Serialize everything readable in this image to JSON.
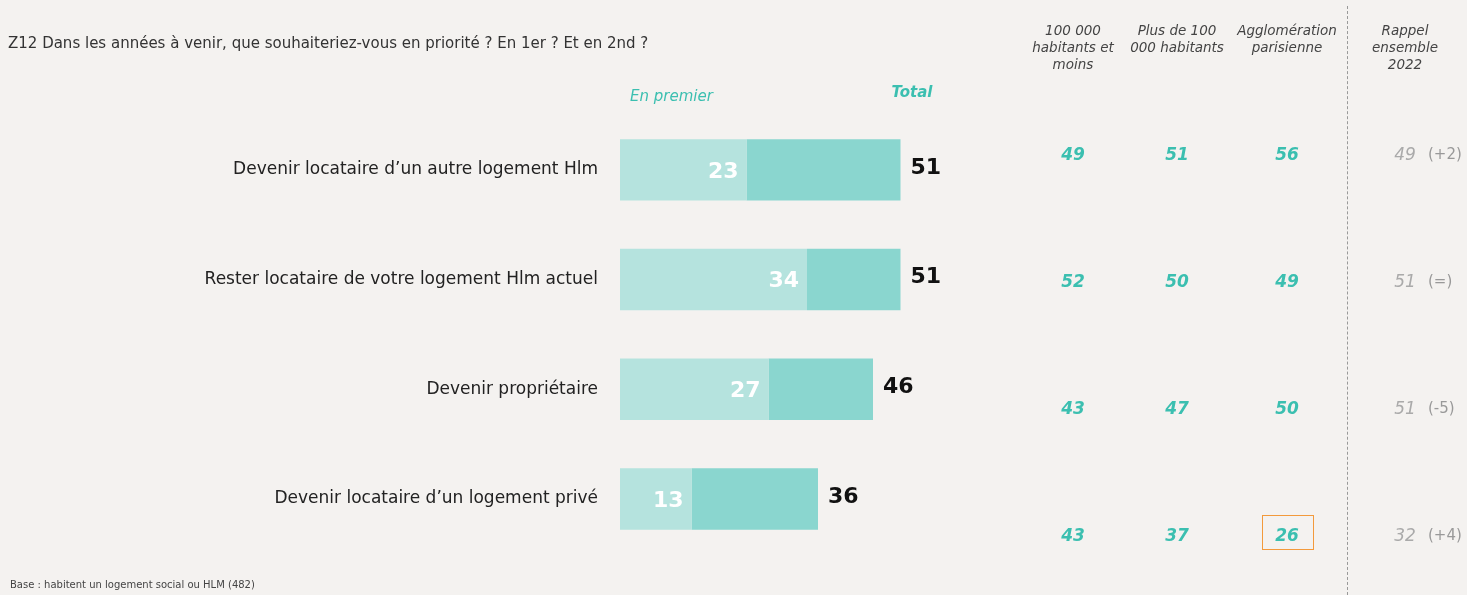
{
  "chart_data": [
    {
      "type": "bar",
      "orientation": "horizontal",
      "stacked": true,
      "title": "Z12 Dans les années à venir, que souhaiteriez-vous en priorité ? En 1er ? Et en 2nd ?",
      "categories": [
        "Devenir locataire d’un autre logement Hlm",
        "Rester locataire de votre logement Hlm actuel",
        "Devenir propriétaire",
        "Devenir locataire d’un logement privé"
      ],
      "series": [
        {
          "name": "En premier",
          "color": "#b5e3de",
          "values": [
            23,
            34,
            27,
            13
          ],
          "value_labels": [
            "23",
            "34",
            "27",
            "13"
          ]
        },
        {
          "color": "#8ad6cf",
          "values": [
            28,
            17,
            19,
            23
          ]
        }
      ],
      "totals": [
        "51",
        "51",
        "46",
        "36"
      ],
      "legend": "top left",
      "tick_labels": "y",
      "annotations": [
        "Total",
        "Base : habitent un logement social ou HLM (482)"
      ]
    },
    {
      "type": "other",
      "annotations": [
        "100 000 habitants et moins",
        "Plus de 100 000 habitants",
        "Agglomération parisienne",
        "Rappel ensemble 2022",
        "49",
        "51",
        "56",
        "49",
        "(+2)",
        "52",
        "50",
        "49",
        "51",
        "(=)",
        "43",
        "47",
        "50",
        "51",
        "(-5)",
        "43",
        "37",
        "26",
        "32",
        "(+4)"
      ]
    }
  ]
}
